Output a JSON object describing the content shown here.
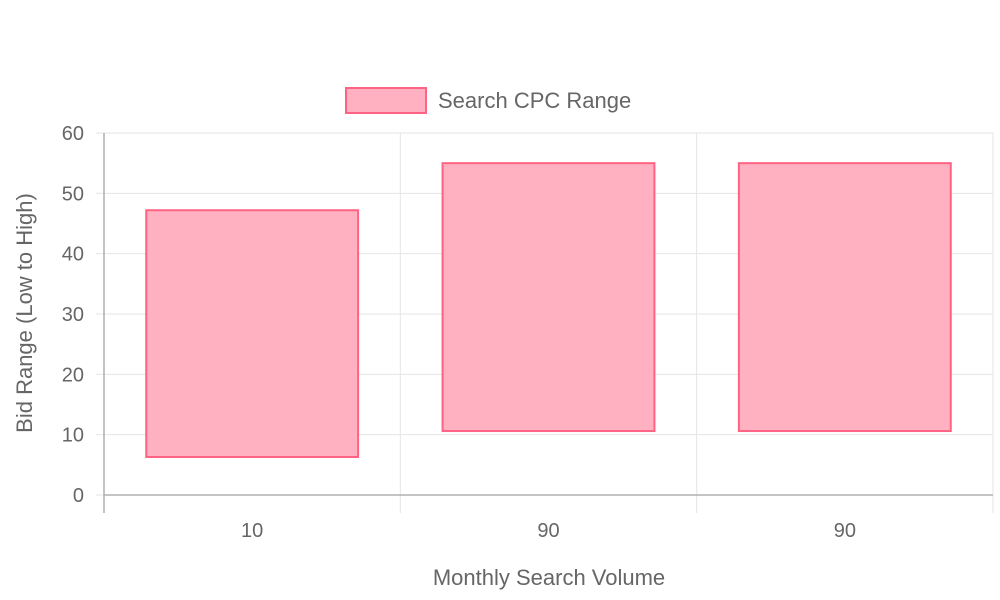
{
  "chart_data": {
    "type": "bar",
    "subtype": "floating-range",
    "categories": [
      "10",
      "90",
      "90"
    ],
    "series": [
      {
        "name": "Search CPC Range",
        "ranges": [
          [
            6.3,
            47.2
          ],
          [
            10.6,
            55.0
          ],
          [
            10.6,
            55.0
          ]
        ],
        "fill": "#ffb1c1",
        "stroke": "#ff6384"
      }
    ],
    "xlabel": "Monthly Search Volume",
    "ylabel": "Bid Range (Low to High)",
    "ylim": [
      0,
      60
    ],
    "yticks": [
      0,
      10,
      20,
      30,
      40,
      50,
      60
    ],
    "grid": true,
    "legend_position": "top"
  },
  "colors": {
    "grid": "#e5e5e5",
    "axis": "#b0b0b0",
    "text": "#666666"
  }
}
